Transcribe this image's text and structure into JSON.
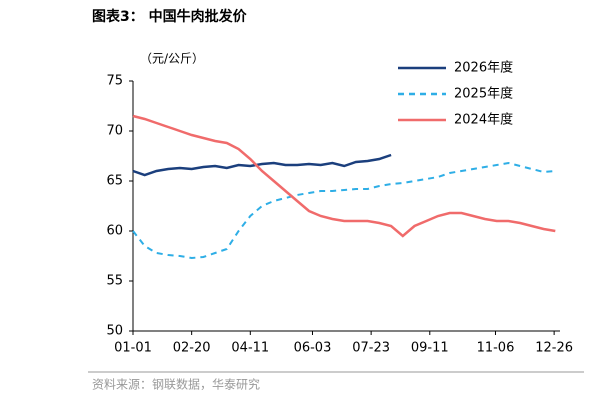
{
  "chart_data": {
    "type": "line",
    "title": "图表3：  中国牛肉批发价",
    "y_label": "（元/公斤）",
    "source": "资料来源：钢联数据，华泰研究",
    "x": [
      1,
      11,
      21,
      31,
      41,
      51,
      61,
      71,
      81,
      91,
      101,
      111,
      121,
      131,
      141,
      151,
      161,
      171,
      181,
      191,
      201,
      211,
      221,
      231,
      241,
      251,
      261,
      271,
      281,
      291,
      301,
      311,
      321,
      331,
      341,
      351,
      361
    ],
    "xlim": [
      1,
      365
    ],
    "xticks": [
      {
        "value": 1,
        "label": "01-01"
      },
      {
        "value": 51,
        "label": "02-20"
      },
      {
        "value": 101,
        "label": "04-11"
      },
      {
        "value": 154,
        "label": "06-03"
      },
      {
        "value": 204,
        "label": "07-23"
      },
      {
        "value": 254,
        "label": "09-11"
      },
      {
        "value": 310,
        "label": "11-06"
      },
      {
        "value": 360,
        "label": "12-26"
      }
    ],
    "ylim": [
      50,
      75
    ],
    "yticks": [
      50,
      55,
      60,
      65,
      70,
      75
    ],
    "series": [
      {
        "name": "2026年度",
        "color": "#1b3f7d",
        "style": "solid",
        "values": [
          66,
          65.6,
          66,
          66.2,
          66.3,
          66.2,
          66.4,
          66.5,
          66.3,
          66.6,
          66.5,
          66.7,
          66.8,
          66.6,
          66.6,
          66.7,
          66.6,
          66.8,
          66.5,
          66.9,
          67,
          67.2,
          67.6,
          null,
          null,
          null,
          null,
          null,
          null,
          null,
          null,
          null,
          null,
          null,
          null,
          null,
          null
        ]
      },
      {
        "name": "2025年度",
        "color": "#2eaee6",
        "style": "dashed",
        "values": [
          60,
          58.5,
          57.8,
          57.6,
          57.5,
          57.3,
          57.4,
          57.8,
          58.2,
          60,
          61.5,
          62.5,
          63,
          63.3,
          63.6,
          63.8,
          64,
          64,
          64.1,
          64.2,
          64.2,
          64.5,
          64.7,
          64.8,
          65,
          65.2,
          65.4,
          65.8,
          66,
          66.2,
          66.4,
          66.6,
          66.8,
          66.5,
          66.2,
          65.9,
          66
        ]
      },
      {
        "name": "2024年度",
        "color": "#f06b6b",
        "style": "solid",
        "values": [
          71.5,
          71.2,
          70.8,
          70.4,
          70,
          69.6,
          69.3,
          69,
          68.8,
          68.2,
          67.2,
          66,
          65,
          64,
          63,
          62,
          61.5,
          61.2,
          61,
          61,
          61,
          60.8,
          60.5,
          59.5,
          60.5,
          61,
          61.5,
          61.8,
          61.8,
          61.5,
          61.2,
          61,
          61,
          60.8,
          60.5,
          60.2,
          60
        ]
      }
    ]
  }
}
